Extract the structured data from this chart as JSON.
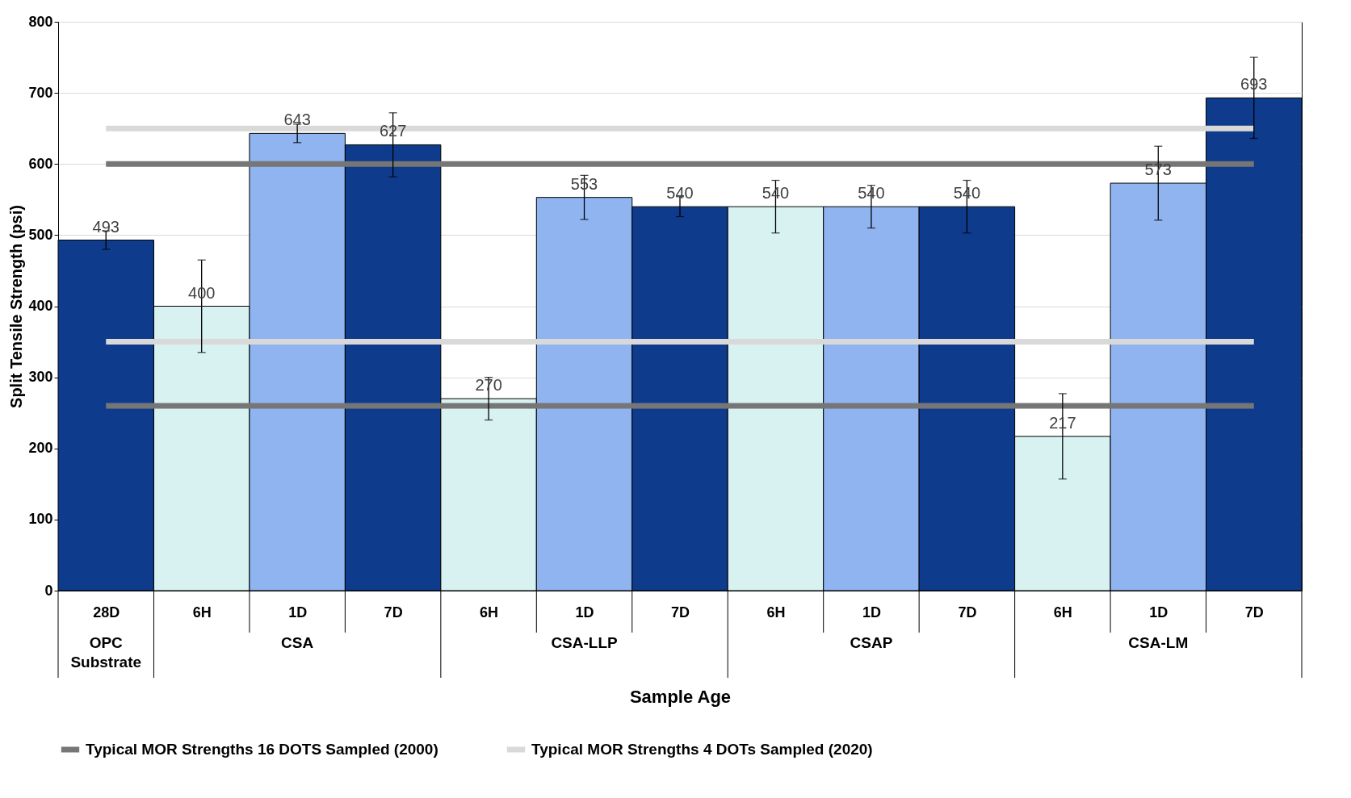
{
  "chart_data": {
    "type": "bar",
    "xlabel": "Sample Age",
    "ylabel": "Split Tensile Strength (psi)",
    "categories": [
      "28D",
      "6H",
      "1D",
      "7D",
      "6H",
      "1D",
      "7D",
      "6H",
      "1D",
      "7D",
      "6H",
      "1D",
      "7D"
    ],
    "values": [
      493,
      400,
      643,
      627,
      270,
      553,
      540,
      540,
      540,
      540,
      217,
      573,
      693
    ],
    "errors": [
      13,
      65,
      13,
      45,
      30,
      31,
      14,
      37,
      30,
      37,
      60,
      52,
      57
    ],
    "colors": [
      "#0e3b8c",
      "#d8f2f2",
      "#8fb4f0",
      "#0e3b8c",
      "#d8f2f2",
      "#8fb4f0",
      "#0e3b8c",
      "#d8f2f2",
      "#8fb4f0",
      "#0e3b8c",
      "#d8f2f2",
      "#8fb4f0",
      "#0e3b8c"
    ],
    "value_labels": [
      "493",
      "400",
      "643",
      "627",
      "270",
      "553",
      "540",
      "540",
      "540",
      "540",
      "217",
      "573",
      "693"
    ],
    "series": [
      {
        "type": "line",
        "name": "Typical MOR Strengths 16 DOTS Sampled (2000)",
        "color": "#767676",
        "values": [
          600,
          600,
          600,
          600,
          600,
          600,
          600,
          600,
          600,
          600,
          600,
          600,
          600
        ]
      },
      {
        "type": "line",
        "name": "Typical MOR Strengths 4 DOTs Sampled (2020)",
        "color": "#d9d9d9",
        "values": [
          650,
          650,
          650,
          650,
          650,
          650,
          650,
          650,
          650,
          650,
          650,
          650,
          650
        ]
      },
      {
        "type": "line",
        "color": "#767676",
        "values": [
          260,
          260,
          260,
          260,
          260,
          260,
          260,
          260,
          260,
          260,
          260,
          260,
          260
        ]
      },
      {
        "type": "line",
        "color": "#d9d9d9",
        "values": [
          350,
          350,
          350,
          350,
          350,
          350,
          350,
          350,
          350,
          350,
          350,
          350,
          350
        ]
      }
    ],
    "annotations": [
      "OPC Substrate",
      "CSA",
      "CSA-LLP",
      "CSAP",
      "CSA-LM"
    ],
    "ylim": [
      0,
      800
    ],
    "yticks": [
      0,
      100,
      200,
      300,
      400,
      500,
      600,
      700,
      800
    ],
    "grid": "y",
    "legend": "bottom"
  }
}
